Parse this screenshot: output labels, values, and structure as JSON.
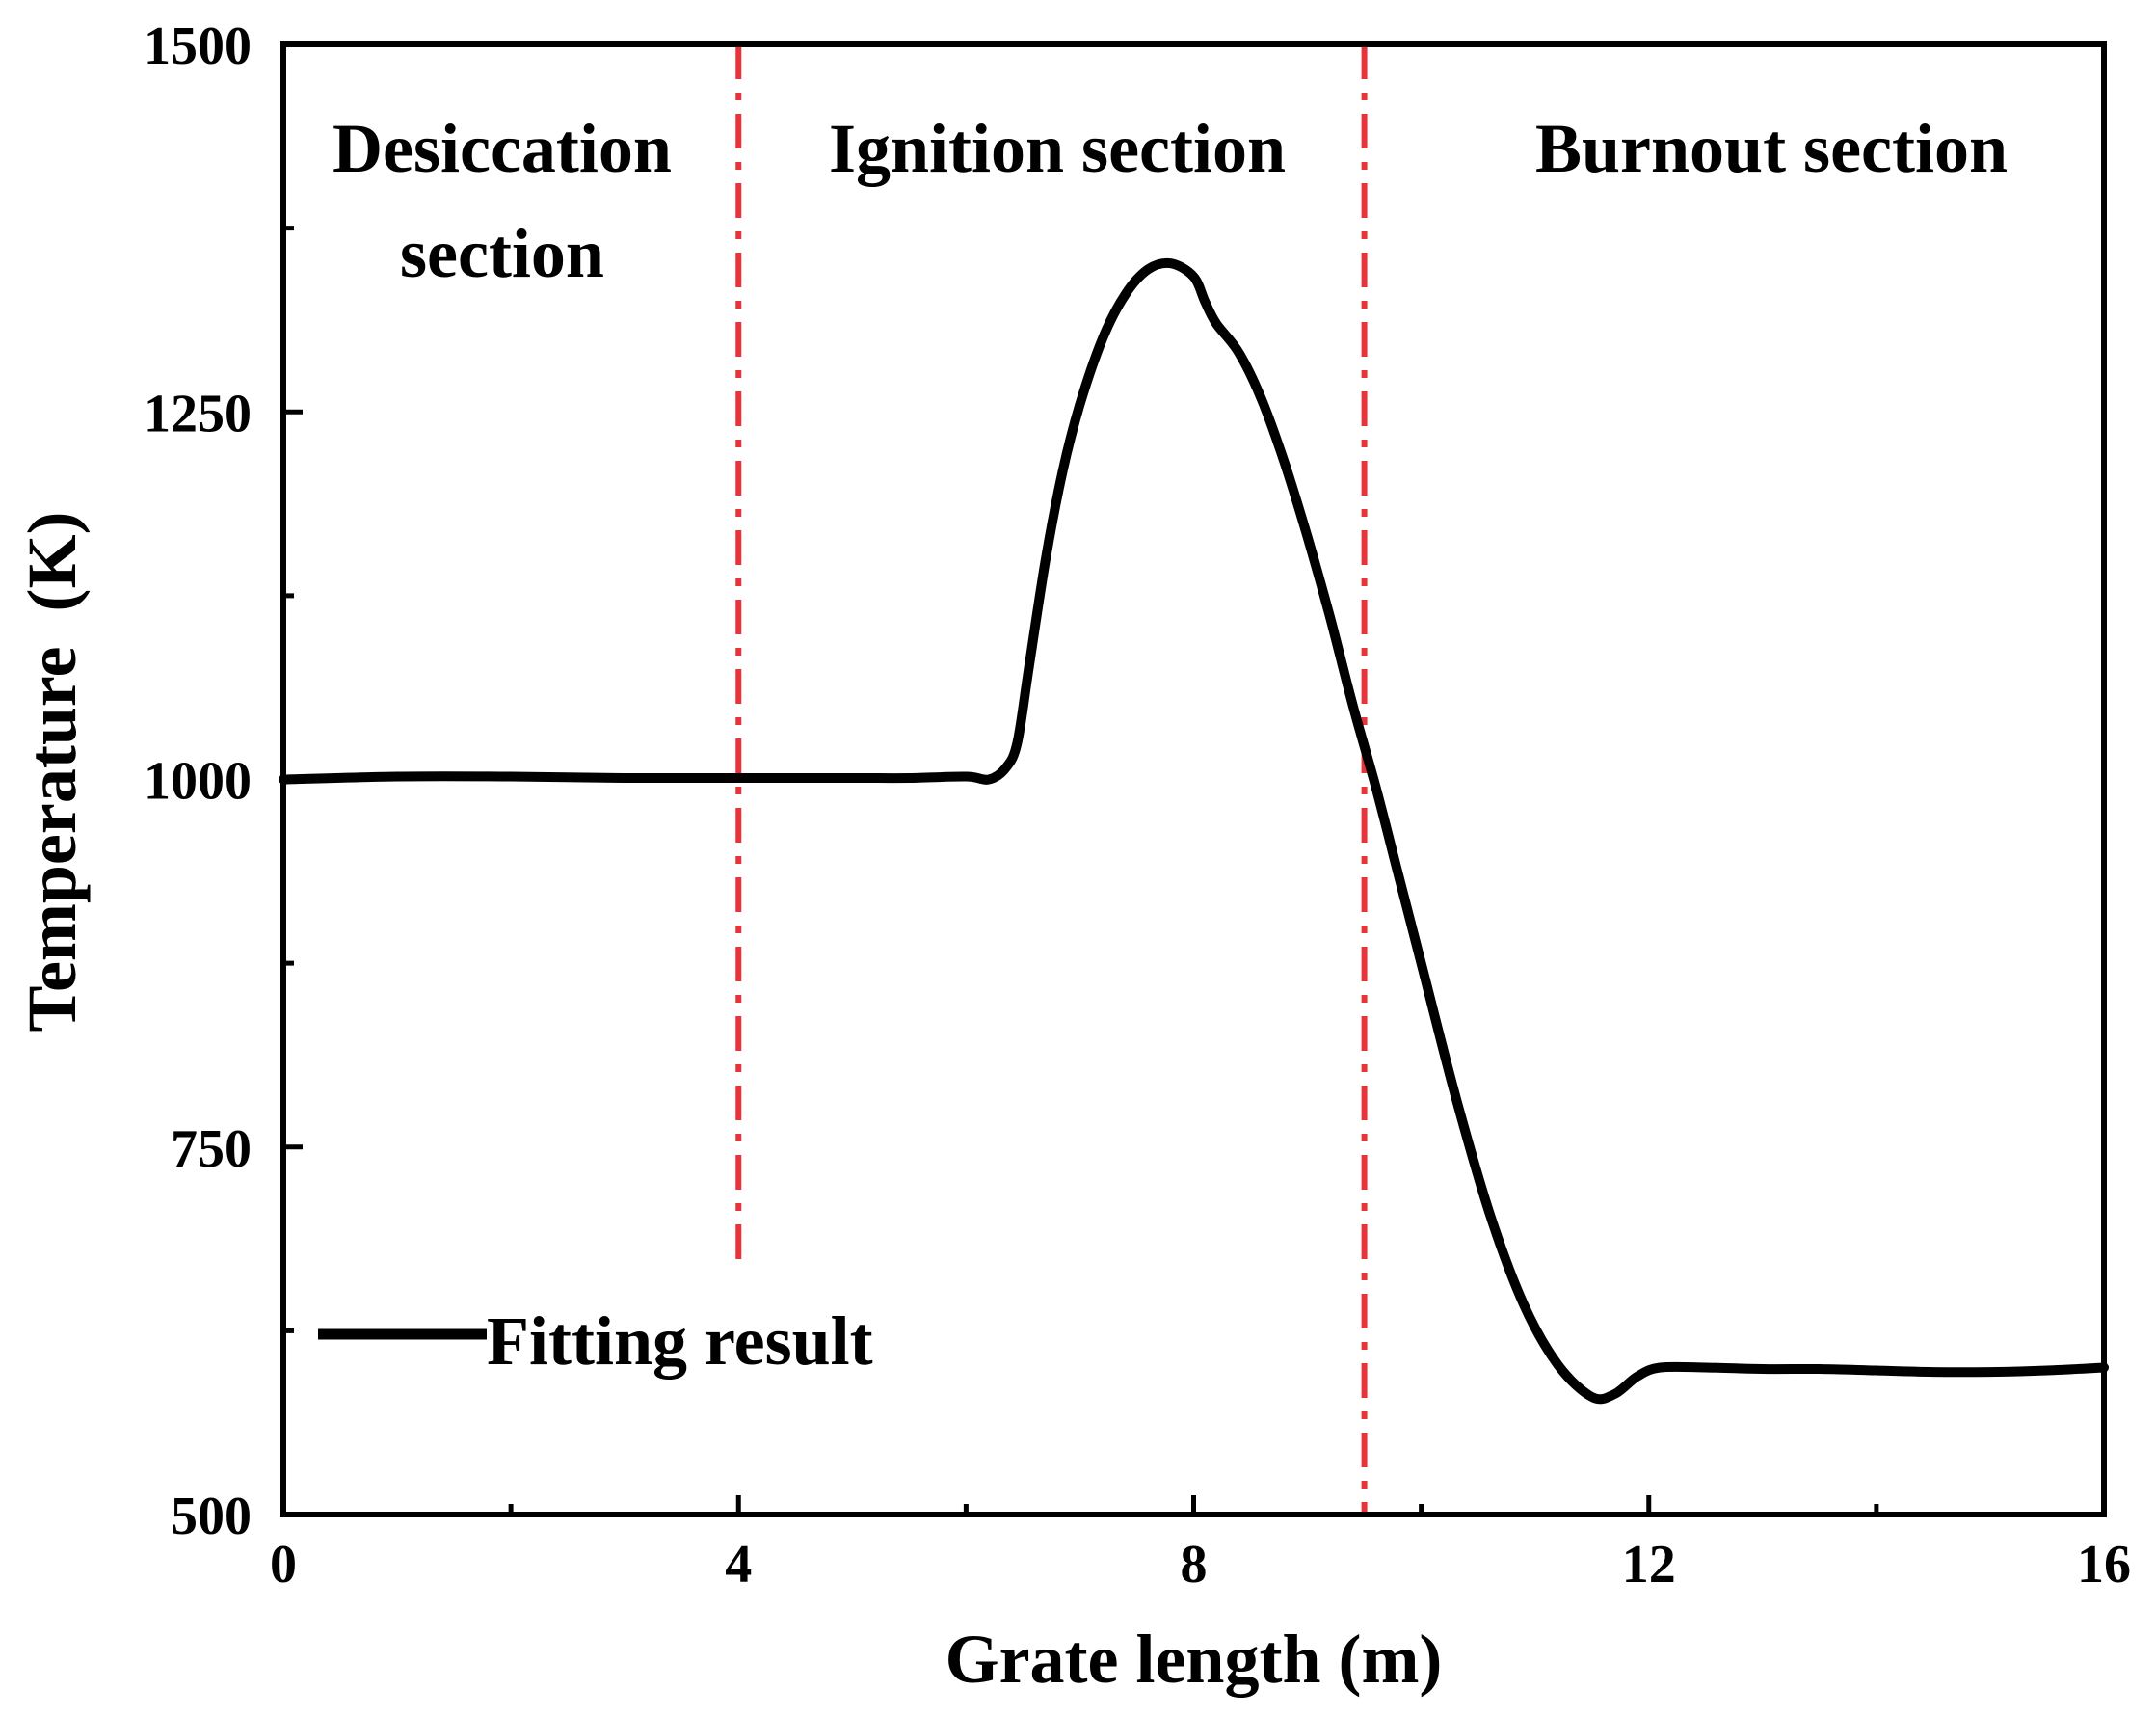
{
  "chart_data": {
    "type": "line",
    "title": "",
    "xlabel": "Grate length (m)",
    "ylabel": "Temperature  (K)",
    "xlim": [
      0,
      16
    ],
    "ylim": [
      500,
      1500
    ],
    "xticks": [
      0,
      4,
      8,
      12,
      16
    ],
    "xticks_minor": [
      2,
      6,
      10,
      14
    ],
    "yticks": [
      500,
      750,
      1000,
      1250,
      1500
    ],
    "yticks_minor": [
      625,
      875,
      1125,
      1375
    ],
    "grid": false,
    "legend": {
      "position": "bottom-left",
      "entries": [
        "Fitting result"
      ]
    },
    "series": [
      {
        "name": "Fitting result",
        "color": "#000000",
        "x": [
          0,
          1,
          2,
          3,
          4,
          5,
          5.5,
          6.0,
          6.2,
          6.35,
          6.45,
          6.55,
          6.7,
          6.85,
          7.0,
          7.2,
          7.4,
          7.6,
          7.8,
          8.0,
          8.1,
          8.2,
          8.4,
          8.6,
          8.8,
          9.0,
          9.2,
          9.4,
          9.6,
          9.8,
          10.0,
          10.3,
          10.6,
          10.9,
          11.2,
          11.5,
          11.7,
          11.9,
          12.1,
          12.5,
          13.0,
          13.5,
          14.0,
          14.5,
          15.0,
          15.5,
          16.0
        ],
        "y": [
          1000,
          1002,
          1002,
          1001,
          1001,
          1001,
          1001,
          1002,
          1000,
          1008,
          1025,
          1075,
          1150,
          1210,
          1255,
          1300,
          1330,
          1347,
          1351,
          1342,
          1325,
          1310,
          1290,
          1258,
          1215,
          1165,
          1110,
          1050,
          995,
          935,
          875,
          785,
          705,
          643,
          602,
          580,
          582,
          594,
          600,
          600,
          599,
          599,
          598,
          597,
          597,
          598,
          600
        ]
      }
    ],
    "vlines": [
      {
        "x": 4.0,
        "y_top": 1500,
        "y_bottom": 672,
        "color": "#e8333a",
        "style": "dash-dot"
      },
      {
        "x": 9.5,
        "y_top": 1500,
        "y_bottom": 500,
        "color": "#e8333a",
        "style": "dash-dot"
      }
    ],
    "region_labels": [
      {
        "lines": [
          "Desiccation",
          "section"
        ]
      },
      {
        "lines": [
          "Ignition section"
        ]
      },
      {
        "lines": [
          "Burnout section"
        ]
      }
    ]
  }
}
